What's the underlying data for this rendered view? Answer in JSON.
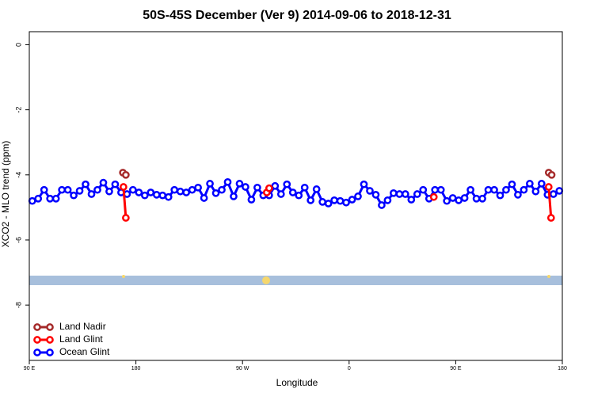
{
  "chart_data": {
    "type": "line",
    "title": "50S-45S December (Ver 9)   2014-09-06 to 2018-12-31",
    "x_label": "Longitude",
    "y_label": "XCO2 - MLO trend (ppm)",
    "xlim": [
      90,
      540
    ],
    "ylim": [
      -9.7,
      0.4
    ],
    "xticks": [
      {
        "value": 90,
        "label": "90 E"
      },
      180,
      {
        "value": 270,
        "label": "90 W"
      },
      {
        "value": 360,
        "label": "0"
      },
      {
        "value": 450,
        "label": "90 E"
      },
      {
        "value": 540,
        "label": "180"
      }
    ],
    "yticks": [
      0,
      -2,
      -4,
      -6,
      -8
    ],
    "legend": "bottom-left",
    "series": [
      {
        "name": "Land Nadir",
        "color": "#a52a2a",
        "x": [
          169,
          171.5,
          null,
          528.5,
          531
        ],
        "values": [
          -3.93,
          -4.0,
          null,
          -3.93,
          -4.0
        ]
      },
      {
        "name": "Land Glint",
        "color": "#ff0000",
        "x": [
          169.5,
          171.5,
          null,
          290.5,
          292.5,
          null,
          431.5,
          null,
          528.5,
          530.5
        ],
        "values": [
          -4.37,
          -5.32,
          null,
          -4.54,
          -4.41,
          null,
          -4.68,
          null,
          -4.37,
          -5.32
        ]
      },
      {
        "name": "Ocean Glint",
        "color": "#0000ff",
        "x": [
          92.5,
          97.5,
          102.5,
          107.5,
          112.5,
          117.5,
          122.5,
          127.5,
          132.5,
          137.5,
          142.5,
          147.5,
          152.5,
          157.5,
          162.5,
          167.5,
          172.5,
          177.5,
          182.5,
          187.5,
          192.5,
          197.5,
          202.5,
          207.5,
          212.5,
          217.5,
          222.5,
          227.5,
          232.5,
          237.5,
          242.5,
          247.5,
          252.5,
          257.5,
          262.5,
          267.5,
          272.5,
          277.5,
          282.5,
          287.5,
          292.5,
          297.5,
          302.5,
          307.5,
          312.5,
          317.5,
          322.5,
          327.5,
          332.5,
          337.5,
          342.5,
          347.5,
          352.5,
          357.5,
          362.5,
          367.5,
          372.5,
          377.5,
          382.5,
          387.5,
          392.5,
          397.5,
          402.5,
          407.5,
          412.5,
          417.5,
          422.5,
          427.5,
          432.5,
          437.5,
          442.5,
          447.5,
          452.5,
          457.5,
          462.5,
          467.5,
          472.5,
          477.5,
          482.5,
          487.5,
          492.5,
          497.5,
          502.5,
          507.5,
          512.5,
          517.5,
          522.5,
          527.5,
          532.5,
          537.5
        ],
        "values": [
          -4.8,
          -4.73,
          -4.46,
          -4.73,
          -4.73,
          -4.46,
          -4.46,
          -4.63,
          -4.49,
          -4.29,
          -4.59,
          -4.46,
          -4.24,
          -4.51,
          -4.29,
          -4.54,
          -4.59,
          -4.46,
          -4.54,
          -4.63,
          -4.54,
          -4.61,
          -4.63,
          -4.68,
          -4.46,
          -4.51,
          -4.54,
          -4.46,
          -4.39,
          -4.71,
          -4.27,
          -4.56,
          -4.46,
          -4.22,
          -4.66,
          -4.27,
          -4.37,
          -4.76,
          -4.39,
          -4.63,
          -4.63,
          -4.34,
          -4.59,
          -4.29,
          -4.54,
          -4.63,
          -4.39,
          -4.78,
          -4.44,
          -4.83,
          -4.88,
          -4.78,
          -4.8,
          -4.85,
          -4.76,
          -4.66,
          -4.29,
          -4.49,
          -4.61,
          -4.93,
          -4.78,
          -4.56,
          -4.59,
          -4.59,
          -4.76,
          -4.59,
          -4.46,
          -4.73,
          -4.46,
          -4.46,
          -4.8,
          -4.71,
          -4.78,
          -4.71,
          -4.46,
          -4.73,
          -4.73,
          -4.46,
          -4.46,
          -4.63,
          -4.46,
          -4.29,
          -4.61,
          -4.46,
          -4.27,
          -4.51,
          -4.27,
          -4.61,
          -4.59,
          -4.49
        ]
      }
    ]
  }
}
